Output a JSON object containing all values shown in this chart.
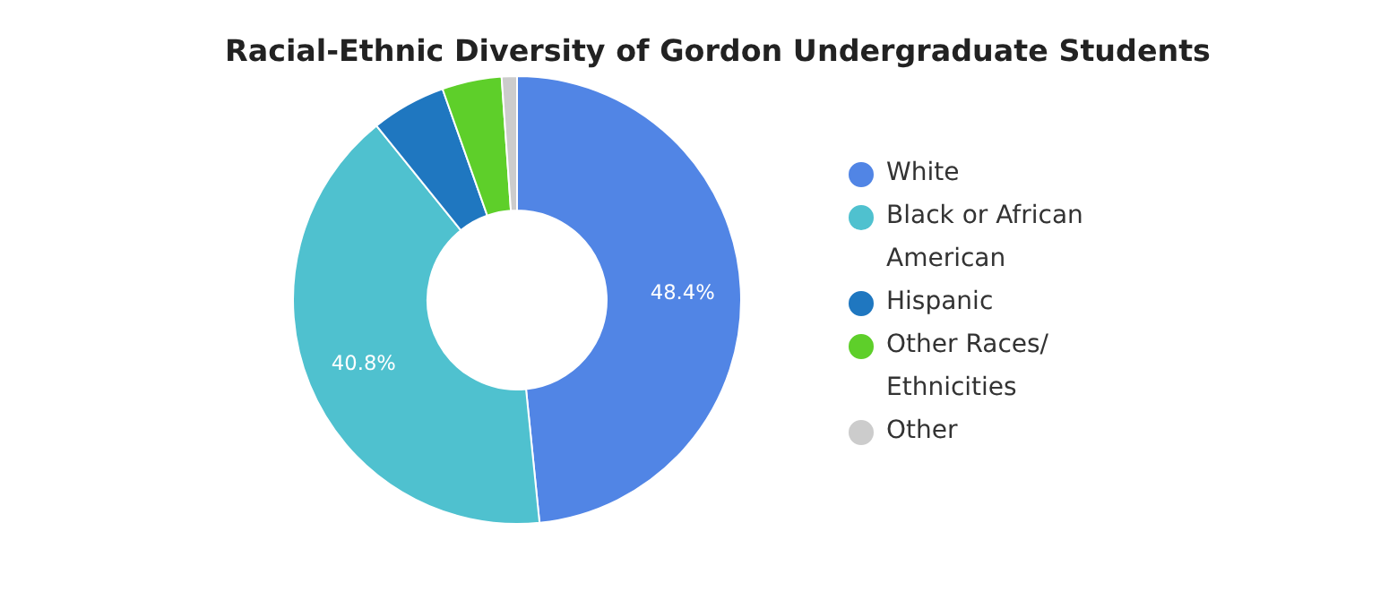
{
  "chart_data": {
    "type": "donut",
    "title": "Racial-Ethnic Diversity of Gordon Undergraduate Students",
    "categories": [
      "White",
      "Black or African American",
      "Hispanic",
      "Other Races/ Ethnicities",
      "Other"
    ],
    "values": [
      48.4,
      40.8,
      5.4,
      4.3,
      1.1
    ],
    "colors": [
      "#5185e5",
      "#4fc1cf",
      "#1f77c0",
      "#5ecf2a",
      "#cccccc"
    ],
    "value_labels": [
      "48.4%",
      "40.8%",
      null,
      null,
      null
    ],
    "legend": "right"
  }
}
